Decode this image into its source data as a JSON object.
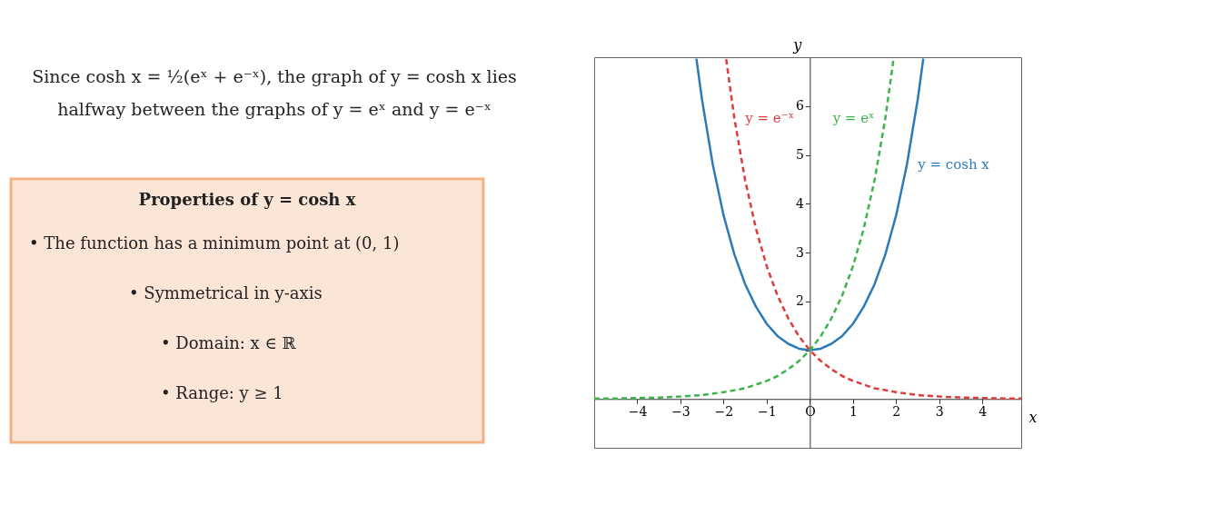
{
  "chart_data": {
    "type": "line",
    "title": "Since cosh x = ½(eˣ + e⁻ˣ), the graph of y = cosh x lies\nhalfway between the graphs of y = eˣ and y = e⁻ˣ",
    "subtitle": "Properties of y = cosh x",
    "xlabel": "x",
    "ylabel": "y",
    "xlim": [
      -5,
      4.9
    ],
    "ylim": [
      -1,
      7
    ],
    "xticks": [
      -4,
      -3,
      -2,
      -1,
      {
        "value": 0,
        "label": "O"
      },
      1,
      2,
      3,
      4
    ],
    "yticks": [
      {
        "value": 1,
        "label": null
      },
      2,
      3,
      4,
      5,
      6
    ],
    "series": [
      {
        "name": "y = cosh x",
        "color": "#2b7bba",
        "line_style": "solid",
        "x": [
          -2.63,
          -2.5,
          -2.25,
          -2,
          -1.75,
          -1.5,
          -1.25,
          -1,
          -0.75,
          -0.5,
          -0.25,
          0,
          0.25,
          0.5,
          0.75,
          1,
          1.25,
          1.5,
          1.75,
          2,
          2.25,
          2.5,
          2.63
        ],
        "values": [
          6.97,
          6.13,
          4.8,
          3.76,
          2.96,
          2.35,
          1.89,
          1.54,
          1.29,
          1.13,
          1.03,
          1,
          1.03,
          1.13,
          1.29,
          1.54,
          1.89,
          2.35,
          2.96,
          3.76,
          4.8,
          6.13,
          6.97
        ]
      },
      {
        "name": "y = e⁻ˣ",
        "color": "#e03a3a",
        "line_style": "dashed",
        "x": [
          -1.94,
          -1.75,
          -1.5,
          -1.25,
          -1,
          -0.75,
          -0.5,
          -0.25,
          0,
          0.25,
          0.5,
          0.75,
          1,
          1.5,
          2,
          2.5,
          3,
          3.5,
          4,
          4.5,
          4.9
        ],
        "values": [
          6.96,
          5.75,
          4.48,
          3.49,
          2.72,
          2.12,
          1.65,
          1.28,
          1,
          0.78,
          0.61,
          0.47,
          0.37,
          0.22,
          0.14,
          0.08,
          0.05,
          0.03,
          0.02,
          0.01,
          0.01
        ]
      },
      {
        "name": "y = eˣ",
        "color": "#3cb44b",
        "line_style": "dashed",
        "x": [
          -5,
          -4.5,
          -4,
          -3.5,
          -3,
          -2.5,
          -2,
          -1.5,
          -1,
          -0.75,
          -0.5,
          -0.25,
          0,
          0.25,
          0.5,
          0.75,
          1,
          1.25,
          1.5,
          1.75,
          1.94
        ],
        "values": [
          0.01,
          0.01,
          0.02,
          0.03,
          0.05,
          0.08,
          0.14,
          0.22,
          0.37,
          0.47,
          0.61,
          0.78,
          1,
          1.28,
          1.65,
          2.12,
          2.72,
          3.49,
          4.48,
          5.75,
          6.96
        ]
      }
    ],
    "annotations": [
      "•   The function has a minimum point at (0, 1)",
      "•   Symmetrical in y-axis",
      "•   Domain: x ∈ ℝ",
      "•   Range: y ≥ 1"
    ]
  }
}
